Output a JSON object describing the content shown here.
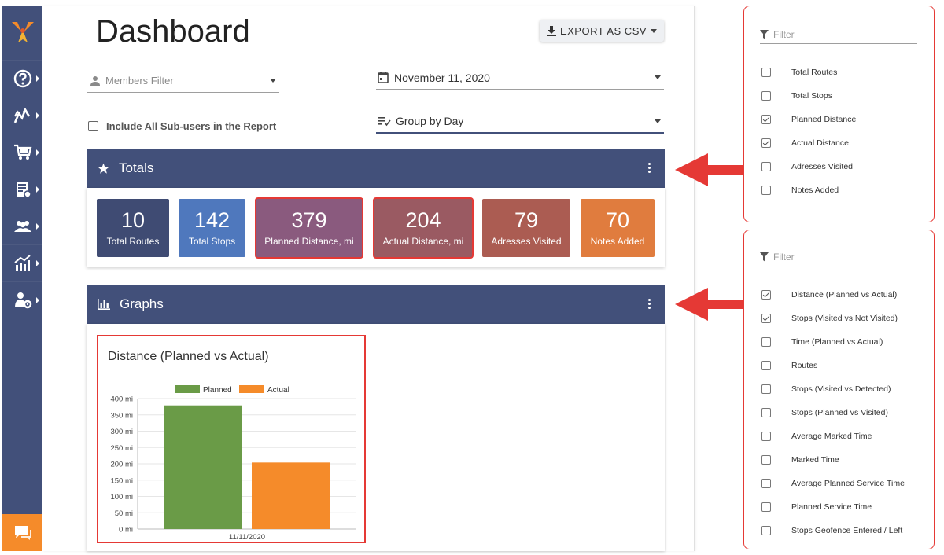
{
  "sidebar": {
    "items": [
      {
        "icon": "help-icon"
      },
      {
        "icon": "routes-icon"
      },
      {
        "icon": "cart-icon"
      },
      {
        "icon": "address-book-icon"
      },
      {
        "icon": "team-icon"
      },
      {
        "icon": "analytics-icon"
      },
      {
        "icon": "user-settings-icon"
      }
    ],
    "chat_icon": "chat-icon",
    "logo_icon": "brand-logo",
    "bg_color": "#42507a",
    "chat_color": "#f58b2a"
  },
  "header": {
    "title": "Dashboard",
    "export_label": "EXPORT AS CSV"
  },
  "filters": {
    "members_placeholder": "Members Filter",
    "date_value": "November 11, 2020",
    "group_value": "Group by Day",
    "include_subusers_label": "Include All Sub-users in the Report",
    "include_subusers_checked": false
  },
  "totals": {
    "title": "Totals",
    "tiles": [
      {
        "value": "10",
        "label": "Total Routes",
        "color": "#3f4b73",
        "highlighted": false
      },
      {
        "value": "142",
        "label": "Total Stops",
        "color": "#4f78bd",
        "highlighted": false
      },
      {
        "value": "379",
        "label": "Planned Distance, mi",
        "color": "#8a5a7e",
        "highlighted": true
      },
      {
        "value": "204",
        "label": "Actual Distance, mi",
        "color": "#9a5a62",
        "highlighted": true
      },
      {
        "value": "79",
        "label": "Adresses Visited",
        "color": "#ab5c52",
        "highlighted": false
      },
      {
        "value": "70",
        "label": "Notes Added",
        "color": "#e07c3e",
        "highlighted": false
      }
    ]
  },
  "graphs": {
    "title": "Graphs"
  },
  "chart_data": {
    "type": "bar",
    "title": "Distance (Planned vs Actual)",
    "categories": [
      "11/11/2020"
    ],
    "series": [
      {
        "name": "Planned",
        "values": [
          379
        ],
        "color": "#6a9b47"
      },
      {
        "name": "Actual",
        "values": [
          204
        ],
        "color": "#f58b2a"
      }
    ],
    "ylim": [
      0,
      400
    ],
    "yticks": [
      "0 mi",
      "50 mi",
      "100 mi",
      "150 mi",
      "200 mi",
      "250 mi",
      "300 mi",
      "350 mi",
      "400 mi"
    ],
    "legend": "top",
    "grid": true
  },
  "totals_filter": {
    "placeholder": "Filter",
    "options": [
      {
        "label": "Total Routes",
        "checked": false
      },
      {
        "label": "Total Stops",
        "checked": false
      },
      {
        "label": "Planned Distance",
        "checked": true
      },
      {
        "label": "Actual Distance",
        "checked": true
      },
      {
        "label": "Adresses Visited",
        "checked": false
      },
      {
        "label": "Notes Added",
        "checked": false
      }
    ]
  },
  "graphs_filter": {
    "placeholder": "Filter",
    "options": [
      {
        "label": "Distance (Planned vs Actual)",
        "checked": true
      },
      {
        "label": "Stops (Visited vs Not Visited)",
        "checked": true
      },
      {
        "label": "Time (Planned vs Actual)",
        "checked": false
      },
      {
        "label": "Routes",
        "checked": false
      },
      {
        "label": "Stops (Visited vs Detected)",
        "checked": false
      },
      {
        "label": "Stops (Planned vs Visited)",
        "checked": false
      },
      {
        "label": "Average Marked Time",
        "checked": false
      },
      {
        "label": "Marked Time",
        "checked": false
      },
      {
        "label": "Average Planned Service Time",
        "checked": false
      },
      {
        "label": "Planned Service Time",
        "checked": false
      },
      {
        "label": "Stops Geofence Entered / Left",
        "checked": false
      }
    ]
  },
  "highlight_color": "#e53935"
}
